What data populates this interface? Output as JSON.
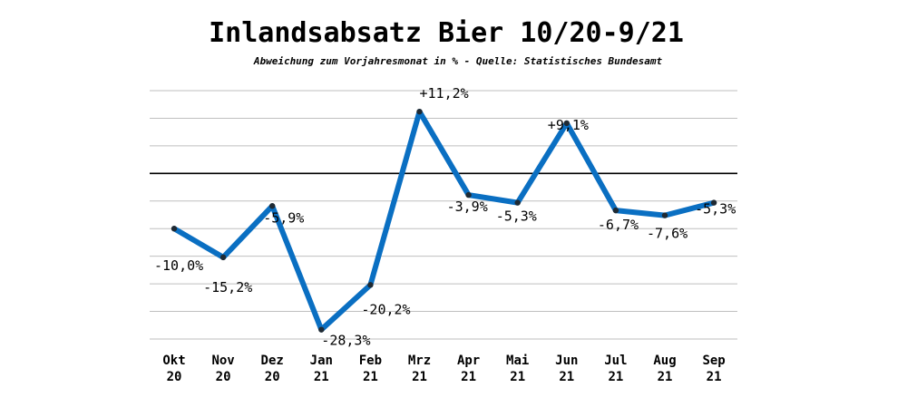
{
  "chart_data": {
    "type": "line",
    "title": "Inlandsabsatz Bier  10/20-9/21",
    "subtitle": "Abweichung zum Vorjahresmonat in % - Quelle: Statistisches Bundesamt",
    "categories": [
      [
        "Okt",
        "20"
      ],
      [
        "Nov",
        "20"
      ],
      [
        "Dez",
        "20"
      ],
      [
        "Jan",
        "21"
      ],
      [
        "Feb",
        "21"
      ],
      [
        "Mrz",
        "21"
      ],
      [
        "Apr",
        "21"
      ],
      [
        "Mai",
        "21"
      ],
      [
        "Jun",
        "21"
      ],
      [
        "Jul",
        "21"
      ],
      [
        "Aug",
        "21"
      ],
      [
        "Sep",
        "21"
      ]
    ],
    "values": [
      -10.0,
      -15.2,
      -5.9,
      -28.3,
      -20.2,
      11.2,
      -3.9,
      -5.3,
      9.1,
      -6.7,
      -7.6,
      -5.3
    ],
    "data_labels": [
      "-10,0%",
      "-15,2%",
      "-5,9%",
      "-28,3%",
      "-20,2%",
      "+11,2%",
      "-3,9%",
      "-5,3%",
      "+9,1%",
      "-6,7%",
      "-7,6%",
      "-5,3%"
    ],
    "ylim": [
      -30,
      15
    ],
    "gridlines": [
      15,
      10,
      5,
      -5,
      -10,
      -15,
      -20,
      -25,
      -30
    ],
    "zero_line": true,
    "grid": true,
    "legend": false,
    "colors": {
      "line": "#0a6fc2",
      "marker": "#1f2a33",
      "grid": "#bfbfbf",
      "zero": "#000000"
    }
  }
}
